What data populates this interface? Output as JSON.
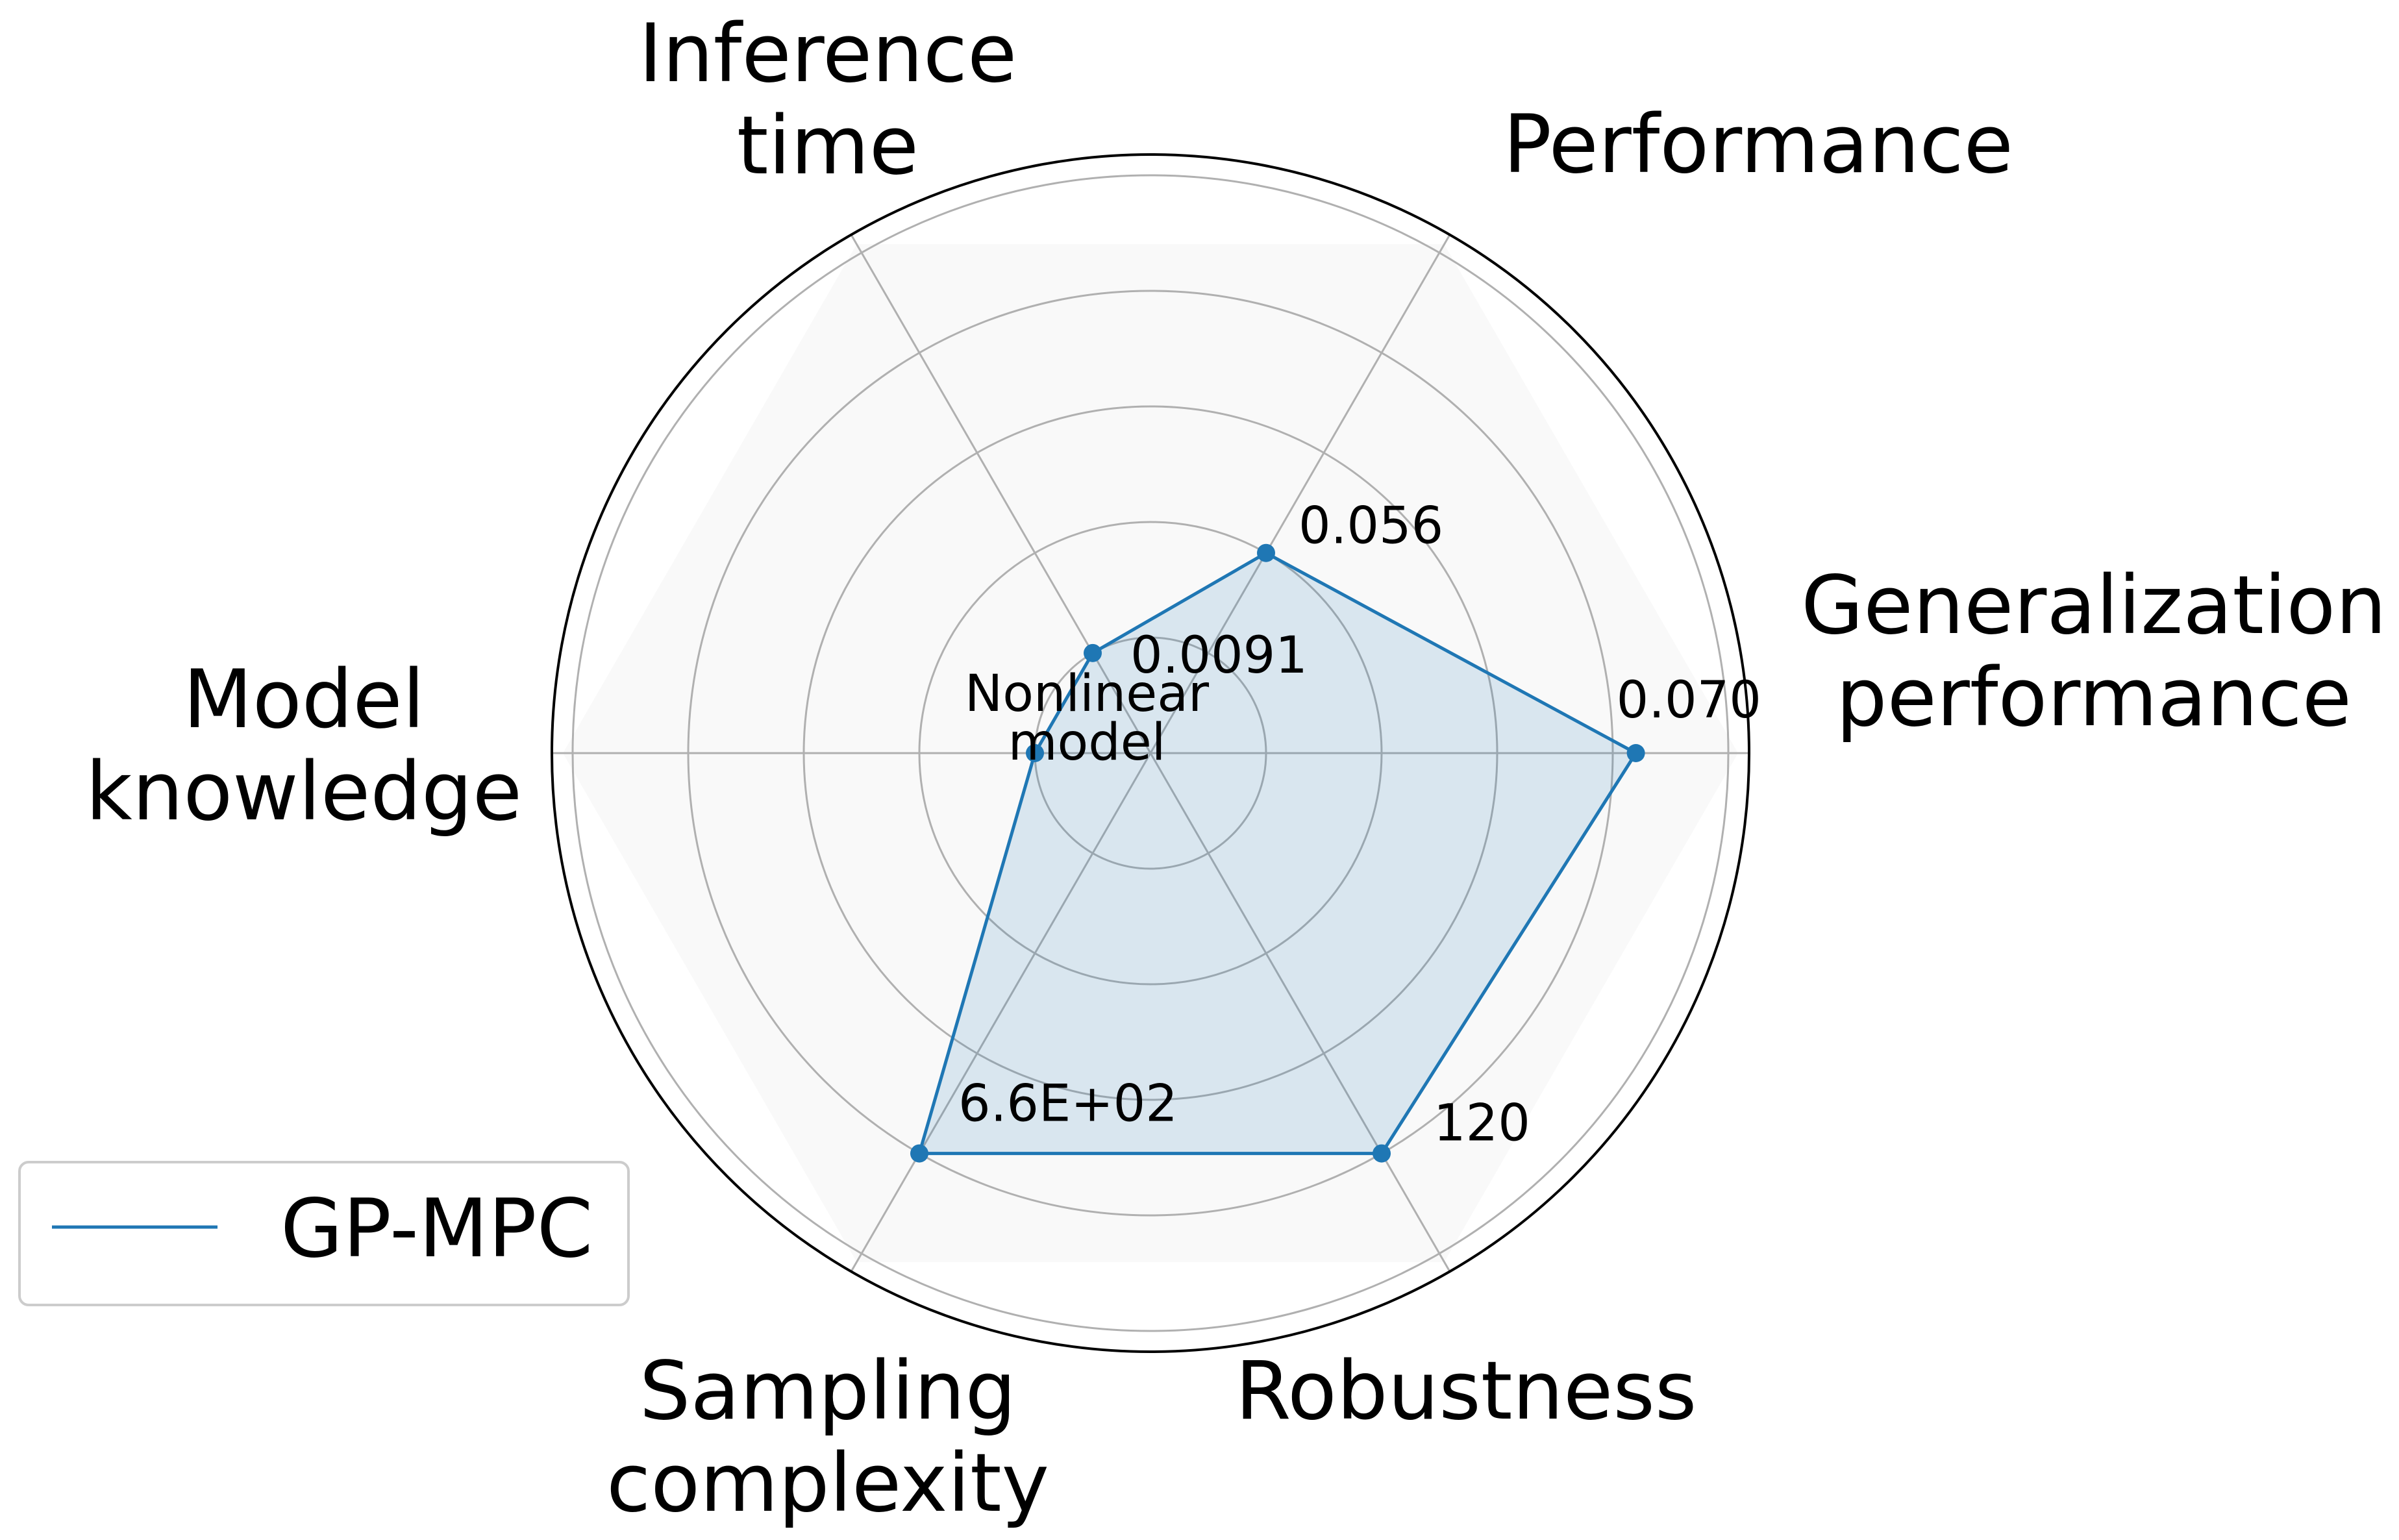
{
  "chart_data": {
    "type": "radar",
    "axes": [
      {
        "label_lines": [
          "Generalization",
          "performance"
        ],
        "value_label": "0.070",
        "value": 0.84
      },
      {
        "label_lines": [
          "Performance"
        ],
        "value_label": "0.056",
        "value": 0.4
      },
      {
        "label_lines": [
          "Inference",
          "time"
        ],
        "value_label": "0.0091",
        "value": 0.2
      },
      {
        "label_lines": [
          "Model",
          "knowledge"
        ],
        "value_label_lines": [
          "Nonlinear",
          "model"
        ],
        "value": 0.2
      },
      {
        "label_lines": [
          "Sampling",
          "complexity"
        ],
        "value_label": "6.6E+02",
        "value": 0.8
      },
      {
        "label_lines": [
          "Robustness"
        ],
        "value_label": "120",
        "value": 0.8
      }
    ],
    "series": [
      {
        "name": "GP-MPC",
        "color": "#1f77b4",
        "fill": "#1f77b4"
      }
    ],
    "rlim": [
      0,
      1
    ],
    "grid": true,
    "legend_position": "lower-left"
  }
}
